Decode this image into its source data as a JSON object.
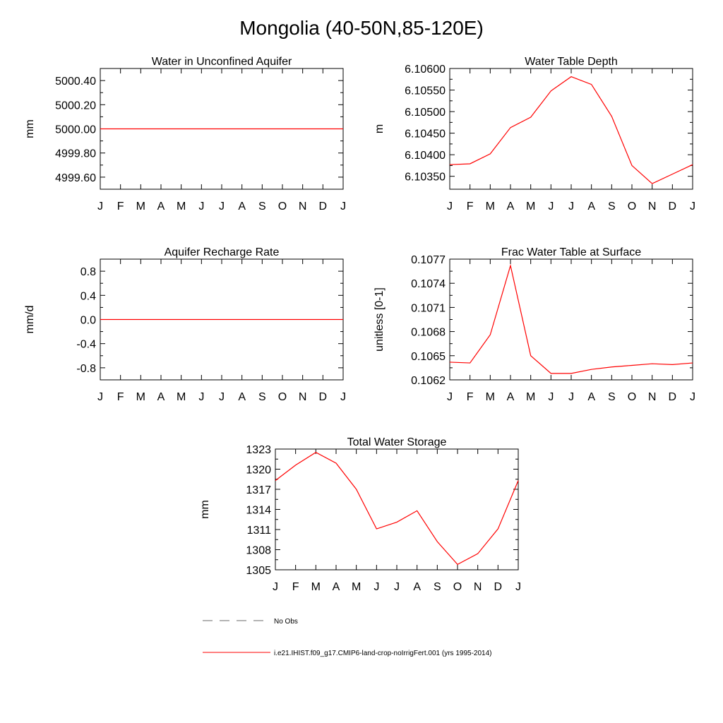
{
  "figure": {
    "title": "Mongolia (40-50N,85-120E)"
  },
  "legend": {
    "obs_label": "No Obs",
    "model_label": "i.e21.IHIST.f09_g17.CMIP6-land-crop-noIrrigFert.001 (yrs 1995-2014)",
    "obs_color": "#888888",
    "model_color": "#ff0000"
  },
  "chart_data": [
    {
      "type": "line",
      "title": "Water in Unconfined Aquifer",
      "ylabel": "mm",
      "categories": [
        "J",
        "F",
        "M",
        "A",
        "M",
        "J",
        "J",
        "A",
        "S",
        "O",
        "N",
        "D",
        "J"
      ],
      "ylim": [
        4999.5,
        5000.5
      ],
      "yticks": [
        4999.6,
        4999.8,
        5000.0,
        5000.2,
        5000.4
      ],
      "ytick_labels": [
        "4999.60",
        "4999.80",
        "5000.00",
        "5000.20",
        "5000.40"
      ],
      "series": [
        {
          "color": "#ff0000",
          "values": [
            5000.0,
            5000.0,
            5000.0,
            5000.0,
            5000.0,
            5000.0,
            5000.0,
            5000.0,
            5000.0,
            5000.0,
            5000.0,
            5000.0,
            5000.0
          ]
        }
      ]
    },
    {
      "type": "line",
      "title": "Water Table Depth",
      "ylabel": "m",
      "categories": [
        "J",
        "F",
        "M",
        "A",
        "M",
        "J",
        "J",
        "A",
        "S",
        "O",
        "N",
        "D",
        "J"
      ],
      "ylim": [
        6.1032,
        6.106
      ],
      "yticks": [
        6.1035,
        6.104,
        6.1045,
        6.105,
        6.1055,
        6.106
      ],
      "ytick_labels": [
        "6.10350",
        "6.10400",
        "6.10450",
        "6.10500",
        "6.10550",
        "6.10600"
      ],
      "series": [
        {
          "color": "#ff0000",
          "values": [
            6.10377,
            6.10379,
            6.10402,
            6.10463,
            6.10487,
            6.10548,
            6.10581,
            6.10563,
            6.10489,
            6.10375,
            6.10333,
            6.10355,
            6.10377
          ]
        }
      ]
    },
    {
      "type": "line",
      "title": "Aquifer Recharge Rate",
      "ylabel": "mm/d",
      "categories": [
        "J",
        "F",
        "M",
        "A",
        "M",
        "J",
        "J",
        "A",
        "S",
        "O",
        "N",
        "D",
        "J"
      ],
      "ylim": [
        -1.0,
        1.0
      ],
      "yticks": [
        -0.8,
        -0.4,
        0.0,
        0.4,
        0.8
      ],
      "ytick_labels": [
        "-0.8",
        "-0.4",
        "0.0",
        "0.4",
        "0.8"
      ],
      "series": [
        {
          "color": "#ff0000",
          "values": [
            0,
            0,
            0,
            0,
            0,
            0,
            0,
            0,
            0,
            0,
            0,
            0,
            0
          ]
        }
      ]
    },
    {
      "type": "line",
      "title": "Frac Water Table at Surface",
      "ylabel": "unitless [0-1]",
      "categories": [
        "J",
        "F",
        "M",
        "A",
        "M",
        "J",
        "J",
        "A",
        "S",
        "O",
        "N",
        "D",
        "J"
      ],
      "ylim": [
        0.1062,
        0.1077
      ],
      "yticks": [
        0.1062,
        0.1065,
        0.1068,
        0.1071,
        0.1074,
        0.1077
      ],
      "ytick_labels": [
        "0.1062",
        "0.1065",
        "0.1068",
        "0.1071",
        "0.1074",
        "0.1077"
      ],
      "series": [
        {
          "color": "#ff0000",
          "values": [
            0.10642,
            0.10641,
            0.10676,
            0.10762,
            0.1065,
            0.10628,
            0.10628,
            0.10633,
            0.10636,
            0.10638,
            0.1064,
            0.10639,
            0.10641
          ]
        }
      ]
    },
    {
      "type": "line",
      "title": "Total Water Storage",
      "ylabel": "mm",
      "categories": [
        "J",
        "F",
        "M",
        "A",
        "M",
        "J",
        "J",
        "A",
        "S",
        "O",
        "N",
        "D",
        "J"
      ],
      "ylim": [
        1305,
        1323
      ],
      "yticks": [
        1305,
        1308,
        1311,
        1314,
        1317,
        1320,
        1323
      ],
      "ytick_labels": [
        "1305",
        "1308",
        "1311",
        "1314",
        "1317",
        "1320",
        "1323"
      ],
      "series": [
        {
          "color": "#ff0000",
          "values": [
            1318.3,
            1320.6,
            1322.5,
            1320.9,
            1317.0,
            1311.1,
            1312.1,
            1313.8,
            1309.2,
            1305.8,
            1307.4,
            1311.1,
            1318.3
          ]
        }
      ]
    }
  ]
}
